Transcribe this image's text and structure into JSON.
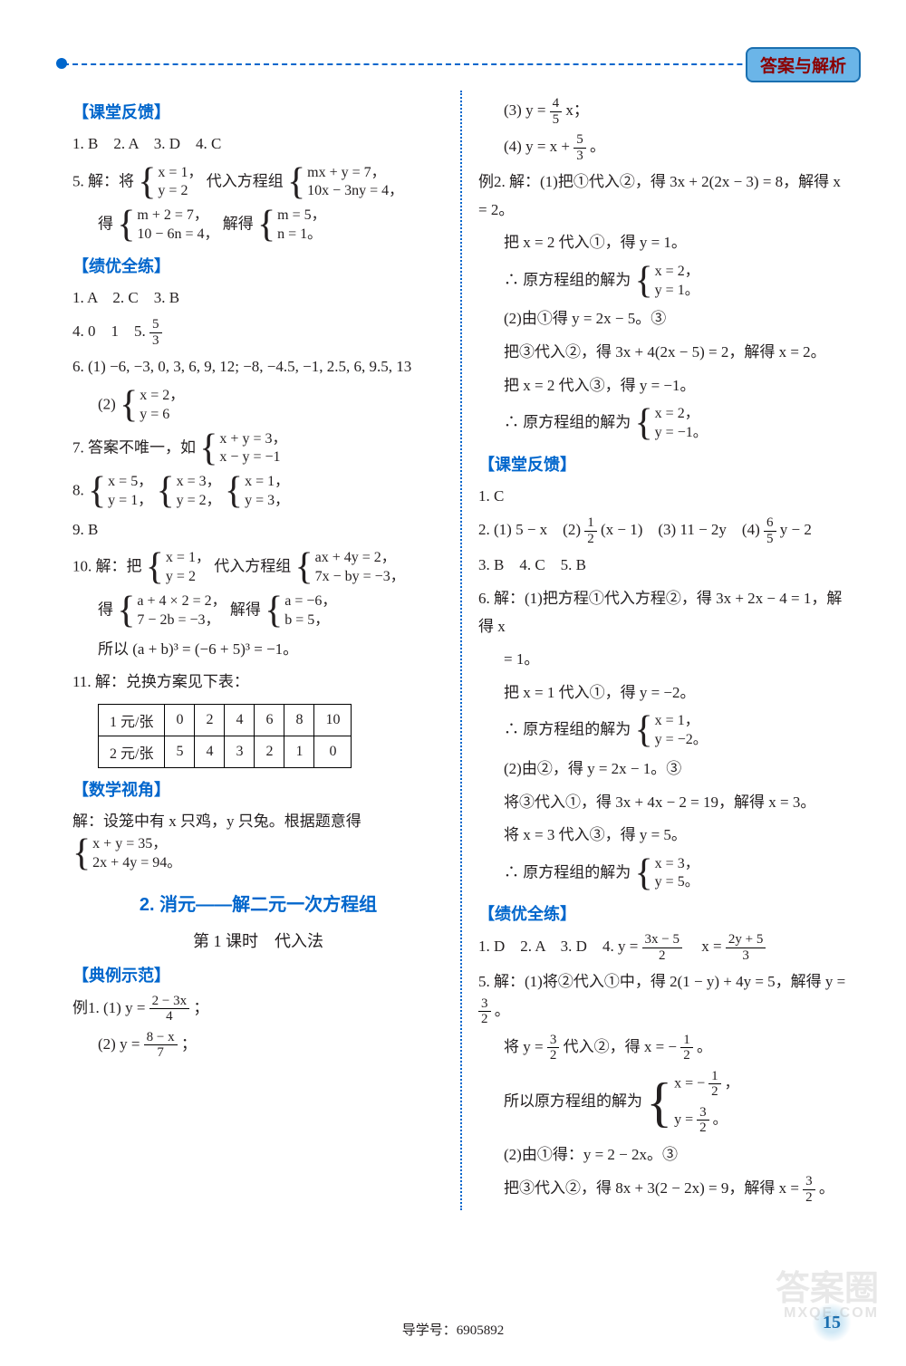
{
  "badge": "答案与解析",
  "footer_text": "导学号：6905892",
  "page_number": "15",
  "watermark_top": "答案圈",
  "watermark_bottom": "MXQE.COM",
  "left": {
    "sec1_title": "【课堂反馈】",
    "l1": "1. B　2. A　3. D　4. C",
    "q5_prefix": "5. 解：将",
    "q5_sys1_a": "x = 1，",
    "q5_sys1_b": "y = 2",
    "q5_mid": "代入方程组",
    "q5_sys2_a": "mx + y = 7，",
    "q5_sys2_b": "10x − 3ny = 4，",
    "q5_l2a": "得",
    "q5_sys3_a": "m + 2 = 7，",
    "q5_sys3_b": "10 − 6n = 4，",
    "q5_l2b": "解得",
    "q5_sys4_a": "m = 5，",
    "q5_sys4_b": "n = 1。",
    "sec2_title": "【绩优全练】",
    "l2a": "1. A　2. C　3. B",
    "l2b_pre": "4. 0　1　5. ",
    "l2b_num": "5",
    "l2b_den": "3",
    "q6_1": "6. (1) −6, −3, 0, 3, 6, 9, 12;  −8, −4.5, −1, 2.5, 6, 9.5, 13",
    "q6_2_pre": "(2)",
    "q6_2_a": "x = 2，",
    "q6_2_b": "y = 6",
    "q7_pre": "7. 答案不唯一，如",
    "q7_a": "x + y = 3，",
    "q7_b": "x − y = −1",
    "q8_pre": "8. ",
    "q8_1a": "x = 5，",
    "q8_1b": "y = 1，",
    "q8_2a": "x = 3，",
    "q8_2b": "y = 2，",
    "q8_3a": "x = 1，",
    "q8_3b": "y = 3，",
    "q9": "9. B",
    "q10_pre": "10. 解：把",
    "q10_s1a": "x = 1，",
    "q10_s1b": "y = 2",
    "q10_mid": "代入方程组",
    "q10_s2a": "ax + 4y = 2，",
    "q10_s2b": "7x − by = −3，",
    "q10_l2a": "得",
    "q10_s3a": "a + 4 × 2 = 2，",
    "q10_s3b": "7 − 2b = −3，",
    "q10_l2b": "解得",
    "q10_s4a": "a = −6，",
    "q10_s4b": "b = 5，",
    "q10_l3": "所以 (a + b)³ = (−6 + 5)³ = −1。",
    "q11": "11. 解：兑换方案见下表：",
    "table": {
      "row1_label": "1 元/张",
      "row1": [
        "0",
        "2",
        "4",
        "6",
        "8",
        "10"
      ],
      "row2_label": "2 元/张",
      "row2": [
        "5",
        "4",
        "3",
        "2",
        "1",
        "0"
      ]
    },
    "sec3_title": "【数学视角】",
    "sj_pre": "解：设笼中有 x 只鸡，y 只兔。根据题意得",
    "sj_a": "x + y = 35，",
    "sj_b": "2x + 4y = 94。",
    "section2": "2. 消元——解二元一次方程组",
    "sub": "第 1 课时　代入法",
    "sec4_title": "【典例示范】",
    "ex1_pre": "例1. (1) y = ",
    "ex1_num": "2 − 3x",
    "ex1_den": "4",
    "ex1_suf": "；",
    "ex1_2_pre": "(2) y = ",
    "ex1_2_num": "8 − x",
    "ex1_2_den": "7",
    "ex1_2_suf": "；"
  },
  "right": {
    "ex1_3_pre": "(3) y = ",
    "ex1_3_num": "4",
    "ex1_3_den": "5",
    "ex1_3_suf": "x；",
    "ex1_4_pre": "(4) y = x + ",
    "ex1_4_num": "5",
    "ex1_4_den": "3",
    "ex1_4_suf": "。",
    "ex2_1": "例2. 解：(1)把①代入②，得 3x + 2(2x − 3) = 8，解得 x = 2。",
    "ex2_2": "把 x = 2 代入①，得 y = 1。",
    "ex2_3_pre": "∴ 原方程组的解为",
    "ex2_3a": "x = 2，",
    "ex2_3b": "y = 1。",
    "ex2_4": "(2)由①得 y = 2x − 5。③",
    "ex2_5": "把③代入②，得 3x + 4(2x − 5) = 2，解得 x = 2。",
    "ex2_6": "把 x = 2 代入③，得 y = −1。",
    "ex2_7_pre": "∴ 原方程组的解为",
    "ex2_7a": "x = 2，",
    "ex2_7b": "y = −1。",
    "sec1_title": "【课堂反馈】",
    "r1": "1. C",
    "r2_pre": "2. (1) 5 − x　(2) ",
    "r2_num": "1",
    "r2_den": "2",
    "r2_mid": "(x − 1)　(3) 11 − 2y　(4) ",
    "r2_num2": "6",
    "r2_den2": "5",
    "r2_suf": "y − 2",
    "r3": "3. B　4. C　5. B",
    "r6_1": "6. 解：(1)把方程①代入方程②，得 3x + 2x − 4 = 1，解得 x",
    "r6_1b": "= 1。",
    "r6_2": "把 x = 1 代入①，得 y = −2。",
    "r6_3_pre": "∴ 原方程组的解为",
    "r6_3a": "x = 1，",
    "r6_3b": "y = −2。",
    "r6_4": "(2)由②，得 y = 2x − 1。③",
    "r6_5": "将③代入①，得 3x + 4x − 2 = 19，解得 x = 3。",
    "r6_6": "将 x = 3 代入③，得 y = 5。",
    "r6_7_pre": "∴ 原方程组的解为",
    "r6_7a": "x = 3，",
    "r6_7b": "y = 5。",
    "sec2_title": "【绩优全练】",
    "jy1_pre": "1. D　2. A　3. D　4. y = ",
    "jy1_num": "3x − 5",
    "jy1_den": "2",
    "jy1_mid": "　x = ",
    "jy1_num2": "2y + 5",
    "jy1_den2": "3",
    "jy5_1_pre": "5. 解：(1)将②代入①中，得 2(1 − y) + 4y = 5，解得 y = ",
    "jy5_1_num": "3",
    "jy5_1_den": "2",
    "jy5_1_suf": "。",
    "jy5_2_pre": "将 y = ",
    "jy5_2_num": "3",
    "jy5_2_den": "2",
    "jy5_2_mid": "代入②，得 x = −",
    "jy5_2_num2": "1",
    "jy5_2_den2": "2",
    "jy5_2_suf": "。",
    "jy5_3_pre": "所以原方程组的解为",
    "jy5_3a_pre": "x = −",
    "jy5_3a_num": "1",
    "jy5_3a_den": "2",
    "jy5_3a_suf": "，",
    "jy5_3b_pre": "y = ",
    "jy5_3b_num": "3",
    "jy5_3b_den": "2",
    "jy5_3b_suf": "。",
    "jy5_4": "(2)由①得：y = 2 − 2x。③",
    "jy5_5_pre": "把③代入②，得 8x + 3(2 − 2x) = 9，解得 x = ",
    "jy5_5_num": "3",
    "jy5_5_den": "2",
    "jy5_5_suf": "。"
  }
}
